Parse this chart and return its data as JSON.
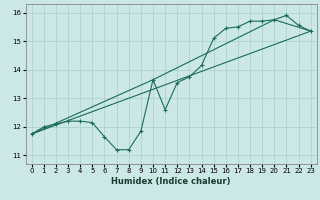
{
  "xlabel": "Humidex (Indice chaleur)",
  "xlim": [
    -0.5,
    23.5
  ],
  "ylim": [
    10.7,
    16.3
  ],
  "yticks": [
    11,
    12,
    13,
    14,
    15,
    16
  ],
  "xticks": [
    0,
    1,
    2,
    3,
    4,
    5,
    6,
    7,
    8,
    9,
    10,
    11,
    12,
    13,
    14,
    15,
    16,
    17,
    18,
    19,
    20,
    21,
    22,
    23
  ],
  "bg_color": "#cce8e6",
  "grid_color": "#aacfcc",
  "line_color": "#1a6b5a",
  "line1_x": [
    0,
    1,
    2,
    3,
    4,
    5,
    6,
    7,
    8,
    9,
    10,
    11,
    12,
    13,
    14,
    15,
    16,
    17,
    18,
    19,
    20,
    21,
    22,
    23
  ],
  "line1_y": [
    11.75,
    12.0,
    12.1,
    12.2,
    12.2,
    12.15,
    11.65,
    11.2,
    11.2,
    11.85,
    13.65,
    12.6,
    13.55,
    13.75,
    14.15,
    15.1,
    15.45,
    15.5,
    15.7,
    15.7,
    15.75,
    15.9,
    15.55,
    15.35
  ],
  "line2_x": [
    0,
    23
  ],
  "line2_y": [
    11.75,
    15.35
  ],
  "line3_x": [
    0,
    10,
    20,
    23
  ],
  "line3_y": [
    11.75,
    13.65,
    15.75,
    15.35
  ]
}
